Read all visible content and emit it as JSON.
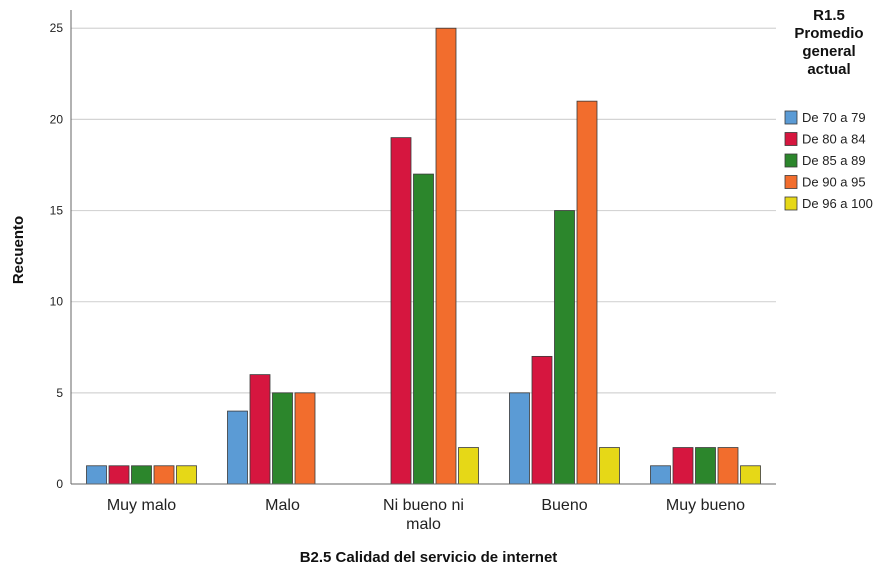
{
  "chart_data": {
    "type": "bar",
    "categories": [
      "Muy malo",
      "Malo",
      "Ni bueno ni malo",
      "Bueno",
      "Muy bueno"
    ],
    "category_lines": [
      [
        "Muy malo"
      ],
      [
        "Malo"
      ],
      [
        "Ni bueno ni",
        "malo"
      ],
      [
        "Bueno"
      ],
      [
        "Muy bueno"
      ]
    ],
    "series": [
      {
        "name": "De 70 a 79",
        "color": "#5b9bd5",
        "values": [
          1,
          4,
          0,
          5,
          1
        ]
      },
      {
        "name": "De 80 a 84",
        "color": "#d6163f",
        "values": [
          1,
          6,
          19,
          7,
          2
        ]
      },
      {
        "name": "De 85 a 89",
        "color": "#2c862c",
        "values": [
          1,
          5,
          17,
          15,
          2
        ]
      },
      {
        "name": "De 90 a 95",
        "color": "#f26d2d",
        "values": [
          1,
          5,
          25,
          21,
          2
        ]
      },
      {
        "name": "De 96 a 100",
        "color": "#e6d817",
        "values": [
          1,
          0,
          2,
          2,
          1
        ]
      }
    ],
    "xlabel": "B2.5 Calidad del servicio de internet",
    "ylabel": "Recuento",
    "ylim": [
      0,
      26
    ],
    "yticks": [
      0,
      5,
      10,
      15,
      20,
      25
    ],
    "grid": true,
    "legend_title_lines": [
      "R1.5",
      "Promedio",
      "general",
      "actual"
    ],
    "legend_position": "right"
  }
}
